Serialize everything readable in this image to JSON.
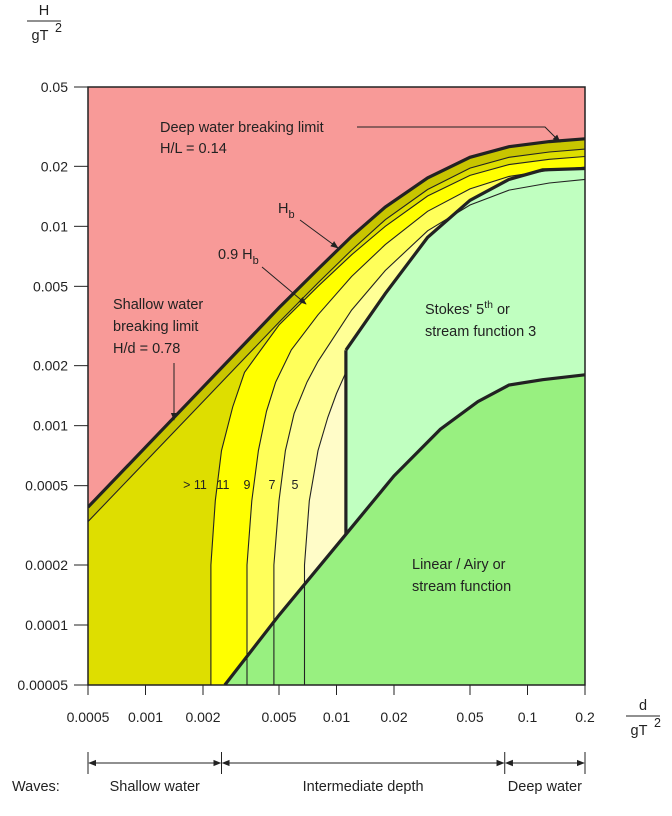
{
  "chart_data": {
    "type": "area",
    "title": "",
    "xscale": "log",
    "yscale": "log",
    "xlim": [
      0.0005,
      0.2
    ],
    "ylim": [
      5e-05,
      0.05
    ],
    "xlabel": {
      "num": "d",
      "den": "gT",
      "exp": "2"
    },
    "ylabel": {
      "num": "H",
      "den": "gT",
      "exp": "2"
    },
    "xticks": [
      {
        "v": 0.0005,
        "t": "0.0005"
      },
      {
        "v": 0.001,
        "t": "0.001"
      },
      {
        "v": 0.002,
        "t": "0.002"
      },
      {
        "v": 0.005,
        "t": "0.005"
      },
      {
        "v": 0.01,
        "t": "0.01"
      },
      {
        "v": 0.02,
        "t": "0.02"
      },
      {
        "v": 0.05,
        "t": "0.05"
      },
      {
        "v": 0.1,
        "t": "0.1"
      },
      {
        "v": 0.2,
        "t": "0.2"
      }
    ],
    "yticks": [
      {
        "v": 5e-05,
        "t": "0.00005"
      },
      {
        "v": 0.0001,
        "t": "0.0001"
      },
      {
        "v": 0.0002,
        "t": "0.0002"
      },
      {
        "v": 0.0005,
        "t": "0.0005"
      },
      {
        "v": 0.001,
        "t": "0.001"
      },
      {
        "v": 0.002,
        "t": "0.002"
      },
      {
        "v": 0.005,
        "t": "0.005"
      },
      {
        "v": 0.01,
        "t": "0.01"
      },
      {
        "v": 0.02,
        "t": "0.02"
      },
      {
        "v": 0.05,
        "t": "0.05"
      }
    ],
    "colors": {
      "breaking": "#f89a98",
      "cnoidal": "#dede00",
      "hb_band": "#c8c500",
      "band11": "#ffff00",
      "band9": "#ffff5a",
      "band7": "#ffff96",
      "band5": "#fffcc8",
      "stokes": "#c0ffc0",
      "linear": "#98f080",
      "line": "#222222"
    },
    "breaking_limit": [
      [
        0.0005,
        0.00039
      ],
      [
        0.002,
        0.00156
      ],
      [
        0.003,
        0.00234
      ],
      [
        0.005,
        0.0039
      ],
      [
        0.008,
        0.0061
      ],
      [
        0.012,
        0.0089
      ],
      [
        0.018,
        0.0125
      ],
      [
        0.03,
        0.0175
      ],
      [
        0.05,
        0.0222
      ],
      [
        0.08,
        0.0251
      ],
      [
        0.13,
        0.0266
      ],
      [
        0.2,
        0.0275
      ]
    ],
    "hb_inner": [
      [
        0.0005,
        0.00033
      ],
      [
        0.002,
        0.00132
      ],
      [
        0.003,
        0.00198
      ],
      [
        0.005,
        0.0033
      ],
      [
        0.008,
        0.0052
      ],
      [
        0.012,
        0.0076
      ],
      [
        0.018,
        0.0108
      ],
      [
        0.03,
        0.0153
      ],
      [
        0.05,
        0.0196
      ],
      [
        0.08,
        0.0222
      ],
      [
        0.13,
        0.0236
      ],
      [
        0.2,
        0.0244
      ]
    ],
    "curve_11": [
      [
        0.0022,
        5e-05
      ],
      [
        0.0022,
        0.0002
      ],
      [
        0.00232,
        0.00042
      ],
      [
        0.0025,
        0.00075
      ],
      [
        0.00286,
        0.00124
      ],
      [
        0.0033,
        0.00185
      ],
      [
        0.005,
        0.0032
      ],
      [
        0.008,
        0.005
      ],
      [
        0.012,
        0.0072
      ],
      [
        0.018,
        0.01
      ],
      [
        0.03,
        0.0142
      ],
      [
        0.05,
        0.018
      ],
      [
        0.08,
        0.0204
      ],
      [
        0.13,
        0.0217
      ],
      [
        0.2,
        0.0224
      ]
    ],
    "curve_9": [
      [
        0.0034,
        5e-05
      ],
      [
        0.0034,
        0.0002
      ],
      [
        0.0036,
        0.00042
      ],
      [
        0.0039,
        0.00075
      ],
      [
        0.0043,
        0.00118
      ],
      [
        0.0048,
        0.00165
      ],
      [
        0.0058,
        0.0024
      ],
      [
        0.008,
        0.0036
      ],
      [
        0.012,
        0.0056
      ],
      [
        0.018,
        0.0081
      ],
      [
        0.03,
        0.0119
      ],
      [
        0.05,
        0.0154
      ],
      [
        0.08,
        0.0178
      ],
      [
        0.13,
        0.0191
      ],
      [
        0.2,
        0.0198
      ]
    ],
    "curve_7": [
      [
        0.0047,
        5e-05
      ],
      [
        0.0047,
        0.0002
      ],
      [
        0.005,
        0.00042
      ],
      [
        0.0054,
        0.00075
      ],
      [
        0.006,
        0.00115
      ],
      [
        0.007,
        0.00165
      ],
      [
        0.008,
        0.0021
      ],
      [
        0.012,
        0.0038
      ],
      [
        0.018,
        0.006
      ],
      [
        0.03,
        0.0095
      ],
      [
        0.05,
        0.0128
      ],
      [
        0.08,
        0.0152
      ],
      [
        0.13,
        0.0165
      ],
      [
        0.2,
        0.0172
      ]
    ],
    "curve_5": [
      [
        0.0068,
        5e-05
      ],
      [
        0.0068,
        0.0002
      ],
      [
        0.0072,
        0.00042
      ],
      [
        0.008,
        0.00075
      ],
      [
        0.009,
        0.0011
      ],
      [
        0.01,
        0.00145
      ],
      [
        0.0112,
        0.00185
      ]
    ],
    "stokes_boundary": [
      [
        0.0112,
        0.00239
      ],
      [
        0.018,
        0.0046
      ],
      [
        0.03,
        0.0088
      ],
      [
        0.05,
        0.0135
      ],
      [
        0.08,
        0.0172
      ],
      [
        0.12,
        0.0192
      ],
      [
        0.2,
        0.0195
      ]
    ],
    "linear_boundary": [
      [
        0.0026,
        5e-05
      ],
      [
        0.005,
        0.000112
      ],
      [
        0.0112,
        0.000285
      ],
      [
        0.02,
        0.00056
      ],
      [
        0.035,
        0.00096
      ],
      [
        0.055,
        0.00132
      ],
      [
        0.08,
        0.0016
      ],
      [
        0.12,
        0.0017
      ],
      [
        0.2,
        0.0018
      ]
    ],
    "divider_x": 0.0112,
    "annotations": {
      "deep": {
        "line1": "Deep water breaking limit",
        "line2": "H/L = 0.14"
      },
      "shallow": {
        "line1": "Shallow water",
        "line2": "breaking limit",
        "line3": "H/d = 0.78"
      },
      "hb": {
        "main": "H",
        "sub": "b"
      },
      "hb09": {
        "main": "0.9 H",
        "sub": "b"
      },
      "stokes": {
        "line1_main": "Stokes' 5",
        "line1_sup": "th",
        "line1_tail": " or",
        "line2": "stream function 3"
      },
      "linear": {
        "line1": "Linear / Airy or",
        "line2": "stream function"
      },
      "orders": [
        "> 11",
        "11",
        "9",
        "7",
        "5"
      ]
    },
    "regions_axis": {
      "label": "Waves:",
      "zones": [
        {
          "name": "Shallow water",
          "from": 0.0005,
          "to": 0.0025
        },
        {
          "name": "Intermediate depth",
          "from": 0.0025,
          "to": 0.076
        },
        {
          "name": "Deep water",
          "from": 0.076,
          "to": 0.2
        }
      ]
    }
  }
}
